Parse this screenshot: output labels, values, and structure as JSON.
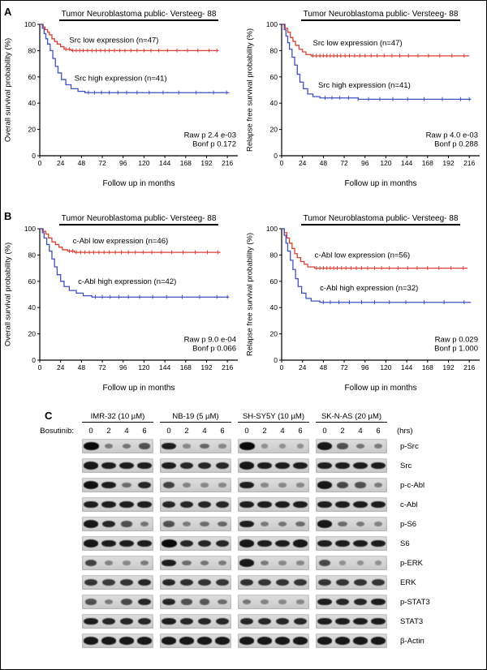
{
  "panels": {
    "a": "A",
    "b": "B",
    "c": "C"
  },
  "chart_data": [
    {
      "type": "line",
      "subtype": "kaplan-meier",
      "panel": "A",
      "side": "left",
      "title": "Tumor Neuroblastoma public- Versteeg- 88",
      "xlabel": "Follow up in months",
      "ylabel": "Overall survival probability (%)",
      "xlim": [
        0,
        228
      ],
      "ylim": [
        0,
        100
      ],
      "x_ticks": [
        0,
        24,
        48,
        72,
        96,
        120,
        144,
        168,
        192,
        216
      ],
      "y_ticks": [
        0,
        20,
        40,
        60,
        80,
        100
      ],
      "annotations": {
        "raw_p": "Raw p 2.4 e-03",
        "bonf_p": "Bonf p 0.172"
      },
      "series": [
        {
          "name": "Src low expression (n=47)",
          "color": "#dd3f34",
          "x_end": 206,
          "steps": [
            [
              0,
              100
            ],
            [
              4,
              98
            ],
            [
              6,
              96
            ],
            [
              9,
              94
            ],
            [
              11,
              92
            ],
            [
              14,
              89
            ],
            [
              17,
              87
            ],
            [
              20,
              85
            ],
            [
              24,
              83
            ],
            [
              28,
              81
            ],
            [
              36,
              80
            ]
          ],
          "censors": [
            30,
            34,
            38,
            42,
            46,
            50,
            55,
            60,
            65,
            70,
            75,
            80,
            86,
            92,
            98,
            105,
            112,
            120,
            128,
            137,
            147,
            158,
            170,
            182,
            195,
            204
          ],
          "label_at": [
            34,
            86
          ]
        },
        {
          "name": "Src high expression (n=41)",
          "color": "#3f51c1",
          "x_end": 218,
          "steps": [
            [
              0,
              100
            ],
            [
              3,
              97
            ],
            [
              5,
              93
            ],
            [
              7,
              89
            ],
            [
              9,
              85
            ],
            [
              12,
              80
            ],
            [
              15,
              74
            ],
            [
              18,
              68
            ],
            [
              21,
              63
            ],
            [
              25,
              58
            ],
            [
              30,
              54
            ],
            [
              36,
              51
            ],
            [
              44,
              49
            ],
            [
              52,
              48
            ]
          ],
          "censors": [
            56,
            63,
            71,
            80,
            90,
            100,
            112,
            126,
            142,
            160,
            180,
            200,
            215
          ],
          "label_at": [
            40,
            57
          ]
        }
      ]
    },
    {
      "type": "line",
      "subtype": "kaplan-meier",
      "panel": "A",
      "side": "right",
      "title": "Tumor Neuroblastoma public- Versteeg- 88",
      "xlabel": "Follow up in months",
      "ylabel": "Relapse free survival probability (%)",
      "xlim": [
        0,
        228
      ],
      "ylim": [
        0,
        100
      ],
      "x_ticks": [
        0,
        24,
        48,
        72,
        96,
        120,
        144,
        168,
        192,
        216
      ],
      "y_ticks": [
        0,
        20,
        40,
        60,
        80,
        100
      ],
      "annotations": {
        "raw_p": "Raw p 4.0 e-03",
        "bonf_p": "Bonf p 0.288"
      },
      "series": [
        {
          "name": "Src low expression (n=47)",
          "color": "#dd3f34",
          "x_end": 216,
          "steps": [
            [
              0,
              100
            ],
            [
              4,
              97
            ],
            [
              7,
              94
            ],
            [
              10,
              90
            ],
            [
              13,
              87
            ],
            [
              16,
              84
            ],
            [
              20,
              81
            ],
            [
              24,
              79
            ],
            [
              28,
              77
            ],
            [
              34,
              76
            ]
          ],
          "censors": [
            36,
            40,
            44,
            48,
            52,
            56,
            60,
            64,
            68,
            73,
            78,
            84,
            90,
            96,
            103,
            110,
            118,
            127,
            136,
            146,
            157,
            169,
            182,
            196,
            210
          ],
          "label_at": [
            36,
            84
          ]
        },
        {
          "name": "Src high expression (n=41)",
          "color": "#3f51c1",
          "x_end": 218,
          "steps": [
            [
              0,
              100
            ],
            [
              3,
              96
            ],
            [
              5,
              91
            ],
            [
              7,
              86
            ],
            [
              9,
              81
            ],
            [
              12,
              75
            ],
            [
              15,
              69
            ],
            [
              18,
              62
            ],
            [
              21,
              56
            ],
            [
              25,
              51
            ],
            [
              30,
              47
            ],
            [
              36,
              45
            ],
            [
              44,
              44
            ],
            [
              88,
              43
            ]
          ],
          "censors": [
            50,
            58,
            67,
            77,
            88,
            100,
            113,
            128,
            145,
            164,
            185,
            206,
            216
          ],
          "label_at": [
            42,
            52
          ]
        }
      ]
    },
    {
      "type": "line",
      "subtype": "kaplan-meier",
      "panel": "B",
      "side": "left",
      "title": "Tumor Neuroblastoma public- Versteeg- 88",
      "xlabel": "Follow up in months",
      "ylabel": "Overall survival probability (%)",
      "xlim": [
        0,
        228
      ],
      "ylim": [
        0,
        100
      ],
      "x_ticks": [
        0,
        24,
        48,
        72,
        96,
        120,
        144,
        168,
        192,
        216
      ],
      "y_ticks": [
        0,
        20,
        40,
        60,
        80,
        100
      ],
      "annotations": {
        "raw_p": "Raw p 9.0 e-04",
        "bonf_p": "Bonf p 0.066"
      },
      "series": [
        {
          "name": "c-Abl low expression (n=46)",
          "color": "#dd3f34",
          "x_end": 208,
          "steps": [
            [
              0,
              100
            ],
            [
              4,
              98
            ],
            [
              7,
              96
            ],
            [
              10,
              93
            ],
            [
              14,
              90
            ],
            [
              18,
              88
            ],
            [
              22,
              86
            ],
            [
              26,
              84
            ],
            [
              32,
              83
            ],
            [
              40,
              82
            ]
          ],
          "censors": [
            34,
            38,
            42,
            47,
            52,
            57,
            62,
            68,
            74,
            80,
            87,
            94,
            102,
            110,
            119,
            129,
            140,
            152,
            165,
            179,
            193,
            205
          ],
          "label_at": [
            38,
            89
          ]
        },
        {
          "name": "c-Abl high expression (n=42)",
          "color": "#3f51c1",
          "x_end": 218,
          "steps": [
            [
              0,
              100
            ],
            [
              3,
              97
            ],
            [
              5,
              93
            ],
            [
              8,
              88
            ],
            [
              11,
              83
            ],
            [
              14,
              77
            ],
            [
              17,
              71
            ],
            [
              20,
              65
            ],
            [
              24,
              60
            ],
            [
              28,
              56
            ],
            [
              34,
              53
            ],
            [
              42,
              51
            ],
            [
              50,
              49
            ],
            [
              60,
              48
            ]
          ],
          "censors": [
            64,
            72,
            81,
            91,
            102,
            115,
            130,
            146,
            164,
            184,
            204,
            216
          ],
          "label_at": [
            44,
            58
          ]
        }
      ]
    },
    {
      "type": "line",
      "subtype": "kaplan-meier",
      "panel": "B",
      "side": "right",
      "title": "Tumor Neuroblastoma public- Versteeg- 88",
      "xlabel": "Follow up in months",
      "ylabel": "Relapse free survival probability (%)",
      "xlim": [
        0,
        228
      ],
      "ylim": [
        0,
        100
      ],
      "x_ticks": [
        0,
        24,
        48,
        72,
        96,
        120,
        144,
        168,
        192,
        216
      ],
      "y_ticks": [
        0,
        20,
        40,
        60,
        80,
        100
      ],
      "annotations": {
        "raw_p": "Raw p 0.029",
        "bonf_p": "Bonf p 1.000"
      },
      "series": [
        {
          "name": "c-Abl low expression (n=56)",
          "color": "#dd3f34",
          "x_end": 214,
          "steps": [
            [
              0,
              100
            ],
            [
              3,
              97
            ],
            [
              6,
              93
            ],
            [
              9,
              89
            ],
            [
              12,
              85
            ],
            [
              15,
              81
            ],
            [
              18,
              78
            ],
            [
              22,
              75
            ],
            [
              26,
              73
            ],
            [
              30,
              71
            ],
            [
              38,
              70
            ]
          ],
          "censors": [
            40,
            44,
            48,
            52,
            56,
            60,
            64,
            69,
            74,
            80,
            86,
            92,
            99,
            107,
            115,
            124,
            134,
            145,
            156,
            168,
            181,
            195,
            209
          ],
          "label_at": [
            38,
            78
          ]
        },
        {
          "name": "c-Abl high expression (n=32)",
          "color": "#3f51c1",
          "x_end": 218,
          "steps": [
            [
              0,
              100
            ],
            [
              3,
              95
            ],
            [
              5,
              89
            ],
            [
              7,
              83
            ],
            [
              10,
              76
            ],
            [
              13,
              69
            ],
            [
              16,
              62
            ],
            [
              19,
              56
            ],
            [
              23,
              51
            ],
            [
              28,
              47
            ],
            [
              34,
              45
            ],
            [
              44,
              44
            ]
          ],
          "censors": [
            48,
            56,
            66,
            78,
            92,
            107,
            124,
            143,
            164,
            187,
            210
          ],
          "label_at": [
            44,
            53
          ]
        }
      ]
    }
  ],
  "western_blots": {
    "treatment_label": "Bosutinib:",
    "time_unit_label": "(hrs)",
    "timepoints": [
      "0",
      "2",
      "4",
      "6"
    ],
    "cell_lines": [
      "IMR-32 (10 µM)",
      "NB-19 (5 µM)",
      "SH-SY5Y (10 µM)",
      "SK-N-AS (20 µM)"
    ],
    "rows": [
      {
        "label": "p-Src",
        "bands": [
          [
            1.0,
            0.2,
            0.25,
            0.5
          ],
          [
            0.85,
            0.1,
            0.35,
            0.1
          ],
          [
            1.0,
            0.05,
            0.05,
            0.05
          ],
          [
            0.9,
            0.5,
            0.25,
            0.2
          ]
        ]
      },
      {
        "label": "Src",
        "bands": [
          [
            0.9,
            0.85,
            0.85,
            0.85
          ],
          [
            0.85,
            0.8,
            0.8,
            0.8
          ],
          [
            0.9,
            0.85,
            0.85,
            0.85
          ],
          [
            0.85,
            0.85,
            0.85,
            0.85
          ]
        ]
      },
      {
        "label": "p-c-Abl",
        "bands": [
          [
            0.95,
            0.85,
            0.3,
            0.8
          ],
          [
            0.6,
            0.15,
            0.1,
            0.1
          ],
          [
            0.85,
            0.1,
            0.1,
            0.1
          ],
          [
            0.9,
            0.55,
            0.5,
            0.2
          ]
        ]
      },
      {
        "label": "c-Abl",
        "bands": [
          [
            0.85,
            0.85,
            0.85,
            0.85
          ],
          [
            0.8,
            0.8,
            0.8,
            0.8
          ],
          [
            0.85,
            0.85,
            0.85,
            0.85
          ],
          [
            0.85,
            0.85,
            0.85,
            0.85
          ]
        ]
      },
      {
        "label": "p-S6",
        "bands": [
          [
            0.9,
            0.8,
            0.5,
            0.25
          ],
          [
            0.5,
            0.2,
            0.3,
            0.35
          ],
          [
            0.85,
            0.2,
            0.25,
            0.3
          ],
          [
            0.9,
            0.3,
            0.2,
            0.15
          ]
        ]
      },
      {
        "label": "S6",
        "bands": [
          [
            0.9,
            0.85,
            0.85,
            0.85
          ],
          [
            1.0,
            0.8,
            0.8,
            0.8
          ],
          [
            0.9,
            0.85,
            0.85,
            0.9
          ],
          [
            0.85,
            0.85,
            0.85,
            0.85
          ]
        ]
      },
      {
        "label": "p-ERK",
        "bands": [
          [
            0.6,
            0.15,
            0.1,
            0.2
          ],
          [
            0.85,
            0.3,
            0.25,
            0.2
          ],
          [
            0.9,
            0.2,
            0.1,
            0.1
          ],
          [
            0.55,
            0.05,
            0.05,
            0.05
          ]
        ]
      },
      {
        "label": "ERK",
        "bands": [
          [
            0.7,
            0.65,
            0.7,
            0.8
          ],
          [
            0.8,
            0.75,
            0.7,
            0.7
          ],
          [
            0.75,
            0.7,
            0.7,
            0.7
          ],
          [
            0.7,
            0.7,
            0.7,
            0.7
          ]
        ]
      },
      {
        "label": "p-STAT3",
        "bands": [
          [
            0.5,
            0.2,
            0.55,
            0.8
          ],
          [
            0.8,
            0.5,
            0.45,
            0.3
          ],
          [
            0.25,
            0.15,
            0.1,
            0.1
          ],
          [
            0.85,
            0.8,
            0.8,
            0.85
          ]
        ]
      },
      {
        "label": "STAT3",
        "bands": [
          [
            0.85,
            0.8,
            0.8,
            0.8
          ],
          [
            0.85,
            0.8,
            0.8,
            0.8
          ],
          [
            0.8,
            0.8,
            0.8,
            0.8
          ],
          [
            0.85,
            0.85,
            0.85,
            0.85
          ]
        ]
      },
      {
        "label": "β-Actin",
        "bands": [
          [
            0.9,
            0.9,
            0.9,
            0.9
          ],
          [
            0.9,
            0.9,
            0.9,
            0.9
          ],
          [
            0.9,
            0.9,
            0.9,
            0.9
          ],
          [
            0.9,
            0.9,
            0.9,
            0.9
          ]
        ]
      }
    ]
  }
}
